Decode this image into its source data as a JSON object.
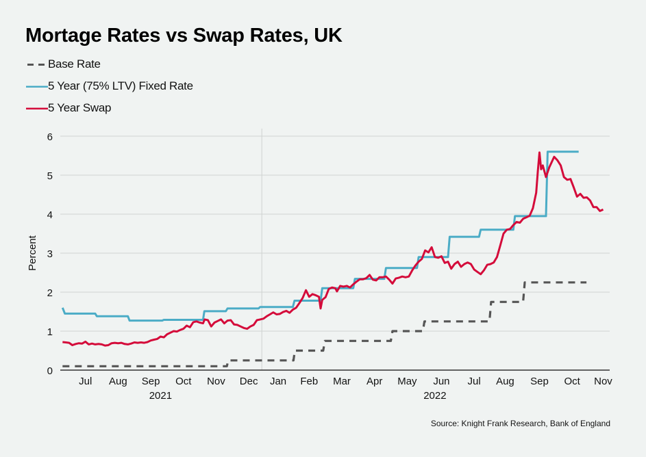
{
  "title": "Mortage Rates vs Swap Rates, UK",
  "source": "Source: Knight Frank Research, Bank of England",
  "colors": {
    "base_rate": "#555555",
    "fixed_rate": "#4bacc6",
    "swap": "#d40b3a",
    "grid": "#d6d9d8",
    "background": "#f0f3f2"
  },
  "legend": [
    {
      "label": "Base Rate",
      "style": "dashed",
      "color": "#555555"
    },
    {
      "label": "5 Year (75% LTV) Fixed Rate",
      "style": "solid",
      "color": "#4bacc6"
    },
    {
      "label": "5 Year Swap",
      "style": "solid",
      "color": "#d40b3a"
    }
  ],
  "chart_data": {
    "type": "line",
    "title": "Mortage Rates vs Swap Rates, UK",
    "xlabel": "",
    "ylabel": "Percent",
    "x_unit": "months offset from 1 Jan 2022",
    "xlim": [
      -6.17,
      10.65
    ],
    "ylim": [
      0,
      6
    ],
    "yticks": [
      0,
      1,
      2,
      3,
      4,
      5,
      6
    ],
    "grid": true,
    "legend_position": "top-left",
    "x_month_ticks": [
      {
        "label": "Jul",
        "x": -5.4
      },
      {
        "label": "Aug",
        "x": -4.4
      },
      {
        "label": "Sep",
        "x": -3.4
      },
      {
        "label": "Oct",
        "x": -2.4
      },
      {
        "label": "Nov",
        "x": -1.4
      },
      {
        "label": "Dec",
        "x": -0.4
      },
      {
        "label": "Jan",
        "x": 0.5
      },
      {
        "label": "Feb",
        "x": 1.45
      },
      {
        "label": "Mar",
        "x": 2.45
      },
      {
        "label": "Apr",
        "x": 3.45
      },
      {
        "label": "May",
        "x": 4.45
      },
      {
        "label": "Jun",
        "x": 5.5
      },
      {
        "label": "Jul",
        "x": 6.5
      },
      {
        "label": "Aug",
        "x": 7.45
      },
      {
        "label": "Sep",
        "x": 8.5
      },
      {
        "label": "Oct",
        "x": 9.5
      },
      {
        "label": "Nov",
        "x": 10.45
      }
    ],
    "year_labels": [
      {
        "label": "2021",
        "x": -3.1
      },
      {
        "label": "2022",
        "x": 5.3
      }
    ],
    "year_divider_x": 0,
    "series": [
      {
        "name": "Base Rate",
        "style": "dashed",
        "points": [
          [
            -6.1,
            0.1
          ],
          [
            -1.07,
            0.1
          ],
          [
            -1.03,
            0.25
          ],
          [
            0.97,
            0.25
          ],
          [
            1.01,
            0.5
          ],
          [
            1.88,
            0.5
          ],
          [
            1.93,
            0.75
          ],
          [
            3.95,
            0.75
          ],
          [
            4.0,
            1.0
          ],
          [
            4.93,
            1.0
          ],
          [
            4.98,
            1.25
          ],
          [
            6.97,
            1.25
          ],
          [
            7.02,
            1.75
          ],
          [
            8.0,
            1.75
          ],
          [
            8.05,
            2.25
          ],
          [
            9.94,
            2.25
          ]
        ]
      },
      {
        "name": "5 Year (75% LTV) Fixed Rate",
        "style": "solid",
        "points": [
          [
            -6.1,
            1.6
          ],
          [
            -6.03,
            1.45
          ],
          [
            -5.1,
            1.45
          ],
          [
            -5.05,
            1.38
          ],
          [
            -4.1,
            1.38
          ],
          [
            -4.05,
            1.27
          ],
          [
            -3.05,
            1.27
          ],
          [
            -3.0,
            1.29
          ],
          [
            -2.1,
            1.29
          ],
          [
            -2.05,
            1.29
          ],
          [
            -1.8,
            1.29
          ],
          [
            -1.76,
            1.51
          ],
          [
            -1.1,
            1.51
          ],
          [
            -1.05,
            1.58
          ],
          [
            -0.1,
            1.58
          ],
          [
            -0.05,
            1.62
          ],
          [
            0.95,
            1.62
          ],
          [
            1.0,
            1.78
          ],
          [
            1.8,
            1.78
          ],
          [
            1.85,
            2.1
          ],
          [
            2.8,
            2.1
          ],
          [
            2.85,
            2.34
          ],
          [
            3.75,
            2.34
          ],
          [
            3.8,
            2.62
          ],
          [
            4.75,
            2.62
          ],
          [
            4.8,
            2.9
          ],
          [
            5.7,
            2.9
          ],
          [
            5.75,
            3.42
          ],
          [
            6.65,
            3.42
          ],
          [
            6.7,
            3.6
          ],
          [
            7.7,
            3.6
          ],
          [
            7.75,
            3.95
          ],
          [
            8.7,
            3.95
          ],
          [
            8.75,
            5.6
          ],
          [
            9.7,
            5.6
          ]
        ]
      },
      {
        "name": "5 Year Swap",
        "style": "solid",
        "points": [
          [
            -6.1,
            0.72
          ],
          [
            -6.0,
            0.71
          ],
          [
            -5.9,
            0.7
          ],
          [
            -5.8,
            0.64
          ],
          [
            -5.7,
            0.67
          ],
          [
            -5.6,
            0.69
          ],
          [
            -5.5,
            0.68
          ],
          [
            -5.4,
            0.73
          ],
          [
            -5.3,
            0.66
          ],
          [
            -5.2,
            0.68
          ],
          [
            -5.1,
            0.66
          ],
          [
            -5.0,
            0.67
          ],
          [
            -4.9,
            0.66
          ],
          [
            -4.8,
            0.63
          ],
          [
            -4.7,
            0.64
          ],
          [
            -4.6,
            0.69
          ],
          [
            -4.5,
            0.7
          ],
          [
            -4.4,
            0.69
          ],
          [
            -4.3,
            0.7
          ],
          [
            -4.2,
            0.67
          ],
          [
            -4.1,
            0.66
          ],
          [
            -4.0,
            0.68
          ],
          [
            -3.9,
            0.71
          ],
          [
            -3.8,
            0.7
          ],
          [
            -3.7,
            0.71
          ],
          [
            -3.6,
            0.7
          ],
          [
            -3.5,
            0.72
          ],
          [
            -3.4,
            0.76
          ],
          [
            -3.3,
            0.78
          ],
          [
            -3.2,
            0.8
          ],
          [
            -3.1,
            0.86
          ],
          [
            -3.0,
            0.84
          ],
          [
            -2.9,
            0.92
          ],
          [
            -2.8,
            0.96
          ],
          [
            -2.7,
            1.0
          ],
          [
            -2.6,
            0.99
          ],
          [
            -2.5,
            1.03
          ],
          [
            -2.4,
            1.06
          ],
          [
            -2.3,
            1.14
          ],
          [
            -2.2,
            1.1
          ],
          [
            -2.1,
            1.23
          ],
          [
            -2.0,
            1.25
          ],
          [
            -1.9,
            1.22
          ],
          [
            -1.8,
            1.2
          ],
          [
            -1.75,
            1.3
          ],
          [
            -1.65,
            1.28
          ],
          [
            -1.55,
            1.12
          ],
          [
            -1.45,
            1.22
          ],
          [
            -1.35,
            1.26
          ],
          [
            -1.25,
            1.3
          ],
          [
            -1.15,
            1.2
          ],
          [
            -1.05,
            1.27
          ],
          [
            -0.95,
            1.28
          ],
          [
            -0.85,
            1.17
          ],
          [
            -0.75,
            1.16
          ],
          [
            -0.65,
            1.12
          ],
          [
            -0.55,
            1.08
          ],
          [
            -0.45,
            1.06
          ],
          [
            -0.35,
            1.12
          ],
          [
            -0.25,
            1.16
          ],
          [
            -0.15,
            1.28
          ],
          [
            -0.05,
            1.3
          ],
          [
            0.05,
            1.32
          ],
          [
            0.15,
            1.38
          ],
          [
            0.25,
            1.43
          ],
          [
            0.35,
            1.48
          ],
          [
            0.45,
            1.43
          ],
          [
            0.55,
            1.44
          ],
          [
            0.65,
            1.49
          ],
          [
            0.75,
            1.52
          ],
          [
            0.85,
            1.47
          ],
          [
            0.95,
            1.55
          ],
          [
            1.05,
            1.6
          ],
          [
            1.15,
            1.72
          ],
          [
            1.25,
            1.85
          ],
          [
            1.35,
            2.05
          ],
          [
            1.45,
            1.88
          ],
          [
            1.55,
            1.95
          ],
          [
            1.65,
            1.92
          ],
          [
            1.75,
            1.88
          ],
          [
            1.8,
            1.58
          ],
          [
            1.85,
            1.8
          ],
          [
            1.95,
            1.87
          ],
          [
            2.05,
            2.08
          ],
          [
            2.15,
            2.12
          ],
          [
            2.25,
            2.1
          ],
          [
            2.3,
            2.02
          ],
          [
            2.4,
            2.16
          ],
          [
            2.5,
            2.14
          ],
          [
            2.6,
            2.16
          ],
          [
            2.7,
            2.12
          ],
          [
            2.8,
            2.2
          ],
          [
            2.9,
            2.27
          ],
          [
            3.0,
            2.33
          ],
          [
            3.1,
            2.33
          ],
          [
            3.2,
            2.36
          ],
          [
            3.3,
            2.44
          ],
          [
            3.4,
            2.32
          ],
          [
            3.5,
            2.3
          ],
          [
            3.6,
            2.38
          ],
          [
            3.7,
            2.38
          ],
          [
            3.8,
            2.4
          ],
          [
            3.9,
            2.32
          ],
          [
            4.0,
            2.22
          ],
          [
            4.1,
            2.35
          ],
          [
            4.2,
            2.37
          ],
          [
            4.3,
            2.4
          ],
          [
            4.4,
            2.38
          ],
          [
            4.5,
            2.4
          ],
          [
            4.6,
            2.55
          ],
          [
            4.7,
            2.68
          ],
          [
            4.8,
            2.78
          ],
          [
            4.9,
            2.85
          ],
          [
            5.0,
            3.07
          ],
          [
            5.1,
            3.02
          ],
          [
            5.2,
            3.15
          ],
          [
            5.3,
            2.9
          ],
          [
            5.4,
            2.88
          ],
          [
            5.5,
            2.92
          ],
          [
            5.6,
            2.75
          ],
          [
            5.7,
            2.78
          ],
          [
            5.8,
            2.6
          ],
          [
            5.9,
            2.72
          ],
          [
            6.0,
            2.78
          ],
          [
            6.1,
            2.65
          ],
          [
            6.2,
            2.72
          ],
          [
            6.3,
            2.76
          ],
          [
            6.4,
            2.72
          ],
          [
            6.5,
            2.58
          ],
          [
            6.6,
            2.52
          ],
          [
            6.7,
            2.46
          ],
          [
            6.8,
            2.56
          ],
          [
            6.9,
            2.7
          ],
          [
            7.0,
            2.72
          ],
          [
            7.1,
            2.76
          ],
          [
            7.2,
            2.9
          ],
          [
            7.3,
            3.2
          ],
          [
            7.4,
            3.5
          ],
          [
            7.5,
            3.6
          ],
          [
            7.6,
            3.62
          ],
          [
            7.7,
            3.72
          ],
          [
            7.8,
            3.8
          ],
          [
            7.9,
            3.78
          ],
          [
            8.0,
            3.88
          ],
          [
            8.1,
            3.92
          ],
          [
            8.2,
            3.96
          ],
          [
            8.3,
            4.15
          ],
          [
            8.4,
            4.55
          ],
          [
            8.45,
            5.1
          ],
          [
            8.5,
            5.58
          ],
          [
            8.55,
            5.15
          ],
          [
            8.6,
            5.25
          ],
          [
            8.7,
            4.95
          ],
          [
            8.8,
            5.2
          ],
          [
            8.9,
            5.38
          ],
          [
            8.95,
            5.47
          ],
          [
            9.05,
            5.38
          ],
          [
            9.15,
            5.25
          ],
          [
            9.25,
            4.95
          ],
          [
            9.35,
            4.88
          ],
          [
            9.45,
            4.9
          ],
          [
            9.55,
            4.68
          ],
          [
            9.65,
            4.45
          ],
          [
            9.75,
            4.52
          ],
          [
            9.85,
            4.42
          ],
          [
            9.95,
            4.43
          ],
          [
            10.05,
            4.35
          ],
          [
            10.15,
            4.18
          ],
          [
            10.25,
            4.18
          ],
          [
            10.35,
            4.08
          ],
          [
            10.45,
            4.12
          ]
        ]
      }
    ]
  }
}
